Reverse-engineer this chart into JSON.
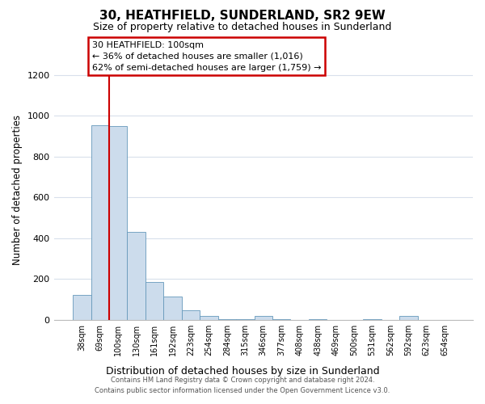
{
  "title": "30, HEATHFIELD, SUNDERLAND, SR2 9EW",
  "subtitle": "Size of property relative to detached houses in Sunderland",
  "xlabel": "Distribution of detached houses by size in Sunderland",
  "ylabel": "Number of detached properties",
  "categories": [
    "38sqm",
    "69sqm",
    "100sqm",
    "130sqm",
    "161sqm",
    "192sqm",
    "223sqm",
    "254sqm",
    "284sqm",
    "315sqm",
    "346sqm",
    "377sqm",
    "408sqm",
    "438sqm",
    "469sqm",
    "500sqm",
    "531sqm",
    "562sqm",
    "592sqm",
    "623sqm",
    "654sqm"
  ],
  "values": [
    120,
    955,
    950,
    430,
    185,
    115,
    47,
    18,
    5,
    5,
    18,
    5,
    0,
    5,
    0,
    0,
    5,
    0,
    18,
    0,
    0
  ],
  "bar_color": "#ccdcec",
  "bar_edge_color": "#6699bb",
  "highlight_index": 2,
  "highlight_line_color": "#cc0000",
  "ylim": [
    0,
    1270
  ],
  "yticks": [
    0,
    200,
    400,
    600,
    800,
    1000,
    1200
  ],
  "annotation_title": "30 HEATHFIELD: 100sqm",
  "annotation_line1": "← 36% of detached houses are smaller (1,016)",
  "annotation_line2": "62% of semi-detached houses are larger (1,759) →",
  "footer1": "Contains HM Land Registry data © Crown copyright and database right 2024.",
  "footer2": "Contains public sector information licensed under the Open Government Licence v3.0.",
  "background_color": "#ffffff",
  "grid_color": "#d8e0ec"
}
